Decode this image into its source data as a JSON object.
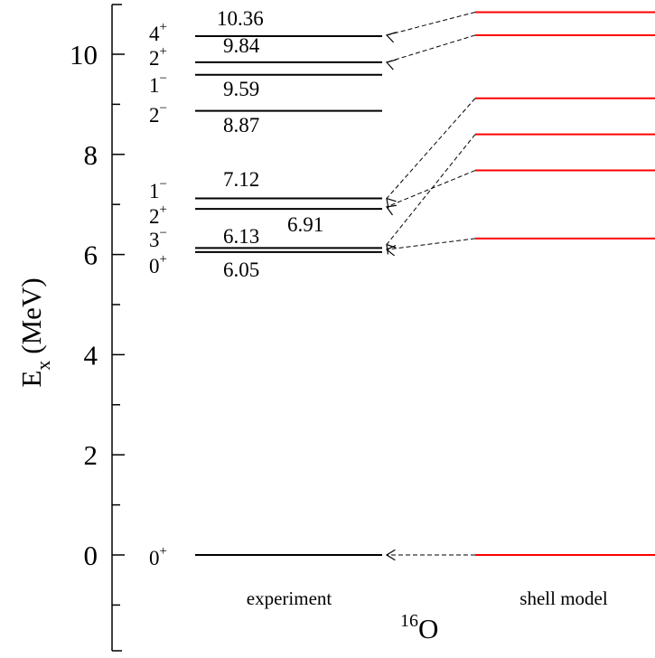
{
  "chart_data": {
    "type": "level-scheme",
    "nucleus": {
      "mass": "16",
      "symbol": "O"
    },
    "ylabel": {
      "main": "E",
      "sub": "x",
      "unit": "(MeV)"
    },
    "ylim": [
      -1.7,
      11.0
    ],
    "major_ticks": [
      0,
      2,
      4,
      6,
      8,
      10
    ],
    "major_tick_labels": [
      "0",
      "2",
      "4",
      "6",
      "8",
      "10"
    ],
    "minor_ticks": [
      -1,
      1,
      3,
      5,
      7,
      9
    ],
    "columns": [
      {
        "label": "experiment",
        "color": "#000000"
      },
      {
        "label": "shell model",
        "color": "#ff0000"
      }
    ],
    "experiment_levels": [
      {
        "energy": 0.0,
        "label": "",
        "spin": "0",
        "parity": "+"
      },
      {
        "energy": 6.05,
        "label": "6.05",
        "spin": "0",
        "parity": "+"
      },
      {
        "energy": 6.13,
        "label": "6.13",
        "spin": "3",
        "parity": "−"
      },
      {
        "energy": 6.91,
        "label": "6.91",
        "spin": "2",
        "parity": "+"
      },
      {
        "energy": 7.12,
        "label": "7.12",
        "spin": "1",
        "parity": "−"
      },
      {
        "energy": 8.87,
        "label": "8.87",
        "spin": "2",
        "parity": "−"
      },
      {
        "energy": 9.59,
        "label": "9.59",
        "spin": "1",
        "parity": "−"
      },
      {
        "energy": 9.84,
        "label": "9.84",
        "spin": "2",
        "parity": "+"
      },
      {
        "energy": 10.36,
        "label": "10.36",
        "spin": "4",
        "parity": "+"
      }
    ],
    "shell_model_levels": [
      0.0,
      6.32,
      7.68,
      8.4,
      9.12,
      10.38,
      10.84
    ],
    "connections": [
      {
        "from_model": 0.0,
        "to_exp": 0.0
      },
      {
        "from_model": 6.32,
        "to_exp": 6.1
      },
      {
        "from_model": 7.68,
        "to_exp": 6.95
      },
      {
        "from_model": 8.4,
        "to_exp": 6.2
      },
      {
        "from_model": 9.12,
        "to_exp": 7.12
      },
      {
        "from_model": 10.38,
        "to_exp": 9.84
      },
      {
        "from_model": 10.84,
        "to_exp": 10.38
      }
    ]
  }
}
